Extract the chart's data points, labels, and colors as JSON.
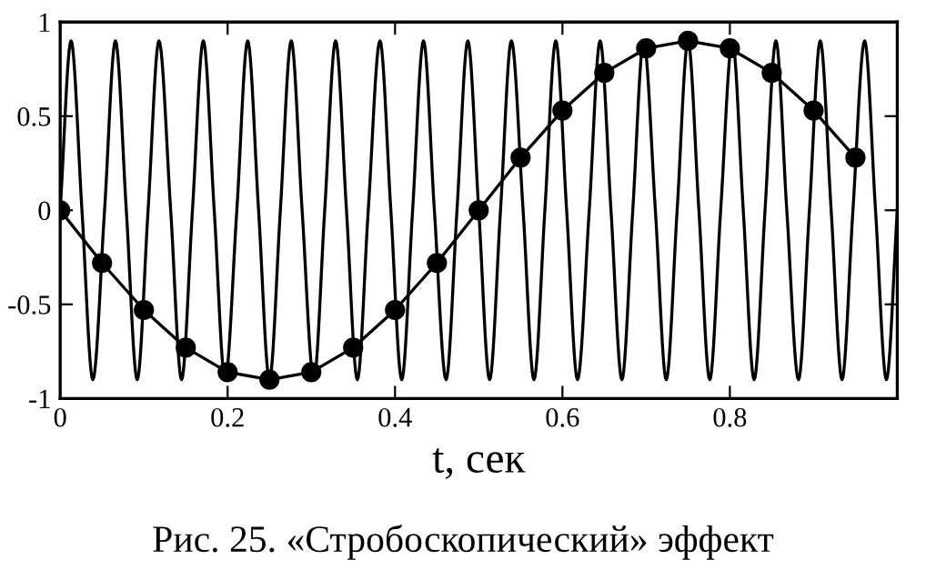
{
  "chart_data": {
    "type": "line",
    "xlabel": "t, сек",
    "annotations": [
      "Рис. 25. «Стробоскопический» эффект"
    ],
    "xlim": [
      0,
      1
    ],
    "xticks": [
      0,
      0.2,
      0.4,
      0.6,
      0.8
    ],
    "ylim": [
      -1,
      1
    ],
    "yticks": [
      -1,
      -0.5,
      0,
      0.5,
      1
    ],
    "grid": false,
    "legend": false,
    "series": [
      {
        "color": "#000000",
        "marker": "none",
        "x": [
          0,
          0.013,
          0.026,
          0.039,
          0.053,
          0.066,
          0.079,
          0.092,
          0.105,
          0.118,
          0.132,
          0.145,
          0.158,
          0.171,
          0.184,
          0.197,
          0.211,
          0.224,
          0.237,
          0.25,
          0.263,
          0.276,
          0.289,
          0.303,
          0.316,
          0.329,
          0.342,
          0.355,
          0.368,
          0.382,
          0.395,
          0.408,
          0.421,
          0.434,
          0.447,
          0.461,
          0.474,
          0.487,
          0.5,
          0.513,
          0.526,
          0.539,
          0.553,
          0.566,
          0.579,
          0.592,
          0.605,
          0.618,
          0.632,
          0.645,
          0.658,
          0.671,
          0.684,
          0.697,
          0.711,
          0.724,
          0.737,
          0.75,
          0.763,
          0.776,
          0.789,
          0.803,
          0.816,
          0.829,
          0.842,
          0.855,
          0.868,
          0.882,
          0.895,
          0.908,
          0.921,
          0.934,
          0.947,
          0.961,
          0.974,
          0.987,
          1.0
        ],
        "values": [
          0,
          0.9,
          0,
          -0.9,
          0,
          0.9,
          0,
          -0.9,
          0,
          0.9,
          0,
          -0.9,
          0,
          0.9,
          0,
          -0.9,
          0,
          0.9,
          0,
          -0.9,
          0,
          0.9,
          0,
          -0.9,
          0,
          0.9,
          0,
          -0.9,
          0,
          0.9,
          0,
          -0.9,
          0,
          0.9,
          0,
          -0.9,
          0,
          0.9,
          0,
          -0.9,
          0,
          0.9,
          0,
          -0.9,
          0,
          0.9,
          0,
          -0.9,
          0,
          0.9,
          0,
          -0.9,
          0,
          0.9,
          0,
          -0.9,
          0,
          0.9,
          0,
          -0.9,
          0,
          0.9,
          0,
          -0.9,
          0,
          0.9,
          0,
          -0.9,
          0,
          0.9,
          0,
          -0.9,
          0,
          0.9,
          0,
          -0.9,
          0
        ]
      },
      {
        "color": "#000000",
        "marker": "circle",
        "x": [
          0,
          0.05,
          0.1,
          0.15,
          0.2,
          0.25,
          0.3,
          0.35,
          0.4,
          0.45,
          0.5,
          0.55,
          0.6,
          0.65,
          0.7,
          0.75,
          0.8,
          0.85,
          0.9,
          0.95
        ],
        "values": [
          0,
          -0.28,
          -0.53,
          -0.73,
          -0.86,
          -0.9,
          -0.86,
          -0.73,
          -0.53,
          -0.28,
          0,
          0.28,
          0.53,
          0.73,
          0.86,
          0.9,
          0.86,
          0.73,
          0.53,
          0.28
        ]
      }
    ]
  }
}
